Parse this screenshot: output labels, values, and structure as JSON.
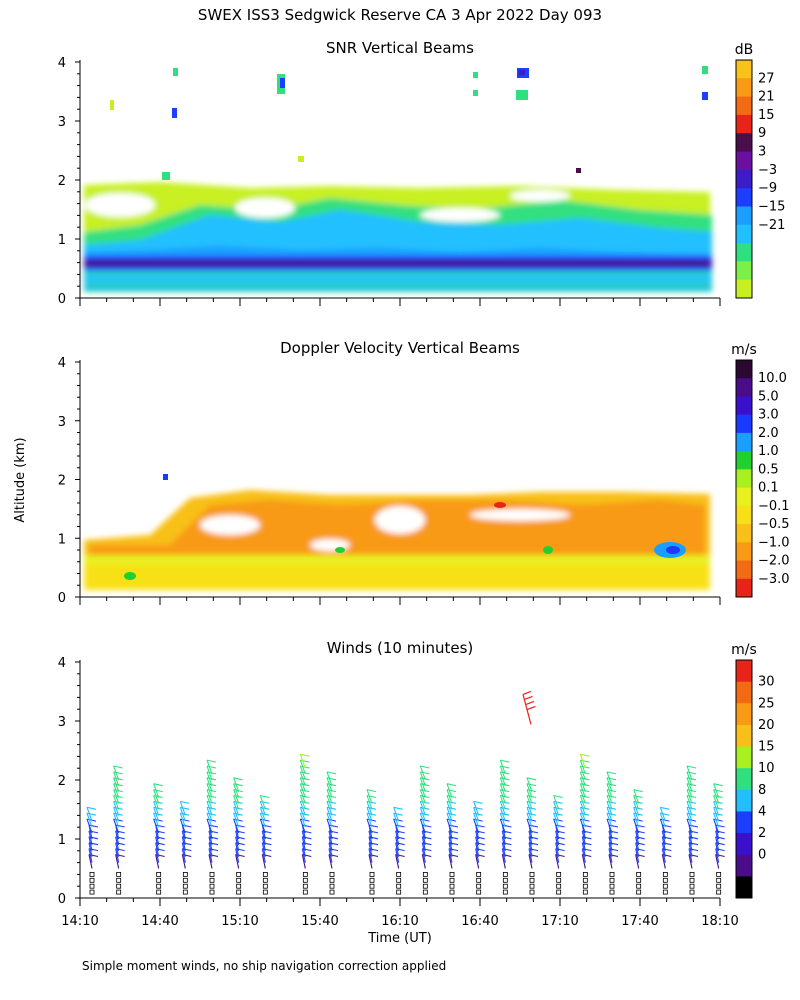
{
  "title": "SWEX ISS3 Sedgwick Reserve CA   3 Apr 2022 Day 093",
  "footer_note": "Simple moment winds, no ship navigation correction applied",
  "shared_ylabel": "Altitude (km)",
  "shared_xlabel": "Time (UT)",
  "chart_data": [
    {
      "type": "heatmap",
      "title": "SNR Vertical Beams",
      "colorbar_unit": "dB",
      "colorbar_ticks": [
        "27",
        "21",
        "15",
        "9",
        "3",
        "−3",
        "−9",
        "−15",
        "−21"
      ],
      "colorbar_colors": [
        "#f7c21a",
        "#f99a14",
        "#f26a12",
        "#e8231a",
        "#4a0f4a",
        "#6a0fa0",
        "#3a1cc8",
        "#1c3fff",
        "#1a9fff",
        "#20c0ff",
        "#30e080",
        "#7cf04a",
        "#c8f020"
      ],
      "y_ticks": [
        "0",
        "1",
        "2",
        "3",
        "4"
      ],
      "ylim": [
        0,
        4
      ],
      "x_ticks": [],
      "xlim": [
        "14:10",
        "18:10"
      ]
    },
    {
      "type": "heatmap",
      "title": "Doppler Velocity Vertical Beams",
      "colorbar_unit": "m/s",
      "colorbar_ticks": [
        "10.0",
        "5.0",
        "3.0",
        "2.0",
        "1.0",
        "0.5",
        "0.1",
        "−0.1",
        "−0.5",
        "−1.0",
        "−2.0",
        "−3.0"
      ],
      "colorbar_colors": [
        "#2a0830",
        "#4a0c88",
        "#3a10cc",
        "#1a3aff",
        "#1a9fff",
        "#20d030",
        "#a8f020",
        "#e8f020",
        "#f8e018",
        "#f8c018",
        "#f89a14",
        "#f26a12",
        "#e8231a"
      ],
      "y_ticks": [
        "0",
        "1",
        "2",
        "3",
        "4"
      ],
      "ylim": [
        0,
        4
      ],
      "x_ticks": [],
      "xlim": [
        "14:10",
        "18:10"
      ]
    },
    {
      "type": "scatter",
      "title": "Winds (10 minutes)",
      "colorbar_unit": "m/s",
      "colorbar_ticks": [
        "30",
        "25",
        "20",
        "15",
        "10",
        "8",
        "4",
        "2",
        "0"
      ],
      "colorbar_colors": [
        "#e8231a",
        "#f26a12",
        "#f99a14",
        "#f8c018",
        "#a8f020",
        "#30e080",
        "#20c0ff",
        "#1c3fff",
        "#3a10cc",
        "#4a0c88",
        "#000000"
      ],
      "y_ticks": [
        "0",
        "1",
        "2",
        "3",
        "4"
      ],
      "ylim": [
        0,
        4
      ],
      "x_ticks": [
        "14:10",
        "14:40",
        "15:10",
        "15:40",
        "16:10",
        "16:40",
        "17:10",
        "17:40",
        "18:10"
      ],
      "xlim": [
        "14:10",
        "18:10"
      ],
      "profile_times_min": [
        0,
        10,
        25,
        35,
        45,
        55,
        65,
        80,
        90,
        105,
        115,
        125,
        135,
        145,
        155,
        165,
        175,
        185,
        195,
        205,
        215,
        225,
        235
      ]
    }
  ]
}
